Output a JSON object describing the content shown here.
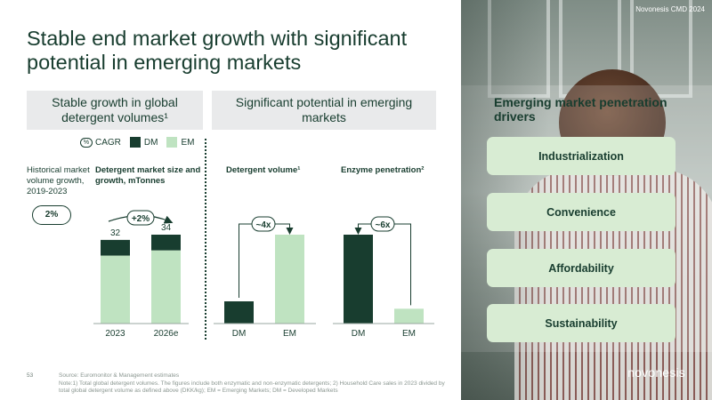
{
  "title": "Stable end market growth with significant potential in emerging markets",
  "left_panel": {
    "header": "Stable growth in global detergent volumes¹",
    "legend": {
      "cagr": "CAGR",
      "cagr_icon": "%",
      "dm": "DM",
      "em": "EM"
    },
    "historical_label": "Historical market volume growth, 2019-2023",
    "historical_value": "2%",
    "chart_title": "Detergent market size and growth, mTonnes",
    "growth_callout": "+2%",
    "growth_icon": "%"
  },
  "right_panel": {
    "header": "Significant potential in emerging markets",
    "volume_title": "Detergent volume¹",
    "penetration_title": "Enzyme penetration²",
    "volume_callout": "~4x",
    "penetration_callout": "~6x"
  },
  "colors": {
    "dm": "#183d2f",
    "em": "#bfe3c1",
    "text": "#183d2f",
    "driver_bg": "#d8ecd3"
  },
  "chart_data": [
    {
      "type": "bar",
      "title": "Detergent market size and growth, mTonnes",
      "categories": [
        "2023",
        "2026e"
      ],
      "series": [
        {
          "name": "DM",
          "values": [
            6,
            6
          ]
        },
        {
          "name": "EM",
          "values": [
            26,
            28
          ]
        }
      ],
      "totals": [
        "32",
        "34"
      ],
      "ylim": [
        0,
        36
      ]
    },
    {
      "type": "bar",
      "title": "Detergent volume¹",
      "categories": [
        "DM",
        "EM"
      ],
      "values": [
        1,
        4
      ],
      "ylim": [
        0,
        4.2
      ]
    },
    {
      "type": "bar",
      "title": "Enzyme penetration²",
      "categories": [
        "DM",
        "EM"
      ],
      "values": [
        6,
        1
      ],
      "ylim": [
        0,
        6.3
      ]
    }
  ],
  "drivers": {
    "title": "Emerging market penetration drivers",
    "items": [
      "Industrialization",
      "Convenience",
      "Affordability",
      "Sustainability"
    ]
  },
  "brand_top": "Novonesis CMD 2024",
  "brand_bottom": "novonesis",
  "footer": {
    "page": "53",
    "source": "Source: Euromonitor & Management estimates",
    "note": "Note:1) Total global detergent volumes. The figures include both enzymatic and non-enzymatic detergents; 2) Household Care sales in 2023 divided by total global detergent volume as defined above (DKK/kg); EM = Emerging Markets; DM = Developed Markets"
  }
}
